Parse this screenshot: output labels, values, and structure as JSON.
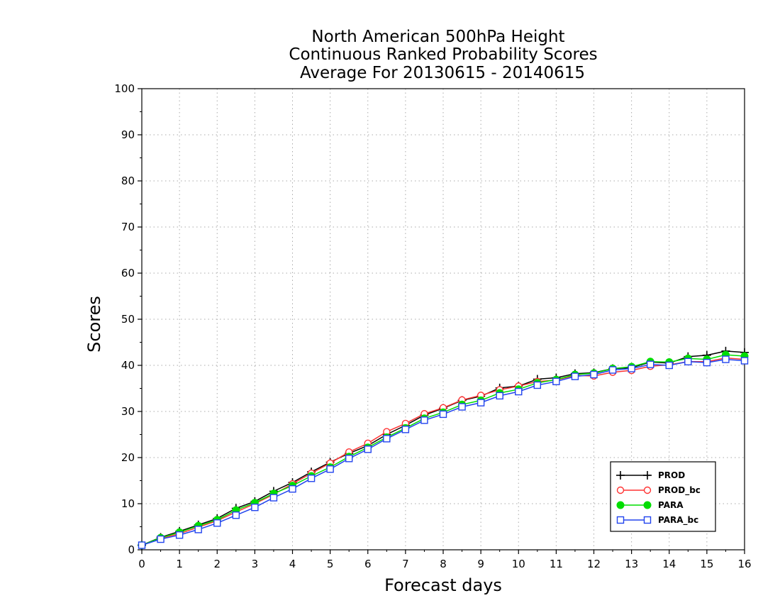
{
  "chart_data": {
    "type": "line",
    "title": [
      "North American 500hPa Height",
      "Continuous Ranked Probability Scores",
      "Average For 20130615 - 20140615"
    ],
    "xlabel": "Forecast days",
    "ylabel": "Scores",
    "xlim": [
      0,
      16
    ],
    "ylim": [
      0,
      100
    ],
    "xticks": [
      0,
      1,
      2,
      3,
      4,
      5,
      6,
      7,
      8,
      9,
      10,
      11,
      12,
      13,
      14,
      15,
      16
    ],
    "yticks": [
      0,
      10,
      20,
      30,
      40,
      50,
      60,
      70,
      80,
      90,
      100
    ],
    "grid": true,
    "legend_position": "bottom-right",
    "x": [
      0,
      0.5,
      1,
      1.5,
      2,
      2.5,
      3,
      3.5,
      4,
      4.5,
      5,
      5.5,
      6,
      6.5,
      7,
      7.5,
      8,
      8.5,
      9,
      9.5,
      10,
      10.5,
      11,
      11.5,
      12,
      12.5,
      13,
      13.5,
      14,
      14.5,
      15,
      15.5,
      16
    ],
    "series": [
      {
        "name": "PROD",
        "color": "#000000",
        "marker": "plus",
        "values": [
          1.0,
          2.7,
          4.0,
          5.4,
          6.8,
          9.0,
          10.5,
          12.7,
          14.6,
          16.9,
          19.0,
          20.9,
          22.6,
          25.0,
          27.0,
          29.2,
          30.7,
          32.4,
          33.3,
          35.1,
          35.5,
          37.0,
          37.3,
          38.2,
          38.4,
          39.3,
          39.5,
          40.7,
          40.5,
          41.9,
          42.2,
          43.1,
          42.8
        ]
      },
      {
        "name": "PROD_bc",
        "color": "#ff3333",
        "marker": "circle-open",
        "values": [
          1.0,
          2.5,
          3.5,
          4.9,
          6.3,
          8.2,
          10.0,
          12.0,
          14.3,
          16.6,
          18.8,
          21.2,
          23.1,
          25.6,
          27.4,
          29.5,
          30.8,
          32.5,
          33.5,
          34.7,
          35.5,
          36.5,
          36.8,
          37.8,
          37.7,
          38.5,
          38.9,
          39.8,
          40.1,
          40.8,
          40.8,
          41.6,
          41.3
        ]
      },
      {
        "name": "PARA",
        "color": "#00dd00",
        "marker": "circle-filled",
        "values": [
          1.0,
          2.6,
          3.8,
          5.2,
          6.5,
          8.6,
          10.2,
          12.2,
          13.9,
          16.0,
          17.9,
          20.2,
          22.2,
          24.4,
          26.4,
          28.5,
          29.8,
          31.5,
          32.4,
          34.0,
          34.8,
          36.2,
          36.9,
          38.0,
          38.3,
          39.3,
          39.7,
          40.8,
          40.7,
          41.5,
          41.3,
          42.3,
          42.0
        ]
      },
      {
        "name": "PARA_bc",
        "color": "#2244ee",
        "marker": "square-open",
        "values": [
          1.0,
          2.3,
          3.2,
          4.4,
          5.8,
          7.5,
          9.2,
          11.3,
          13.2,
          15.5,
          17.5,
          19.8,
          21.8,
          24.1,
          26.1,
          28.1,
          29.4,
          31.0,
          31.9,
          33.4,
          34.3,
          35.7,
          36.5,
          37.6,
          38.0,
          39.0,
          39.3,
          40.2,
          40.0,
          40.8,
          40.6,
          41.3,
          41.0
        ]
      }
    ]
  }
}
